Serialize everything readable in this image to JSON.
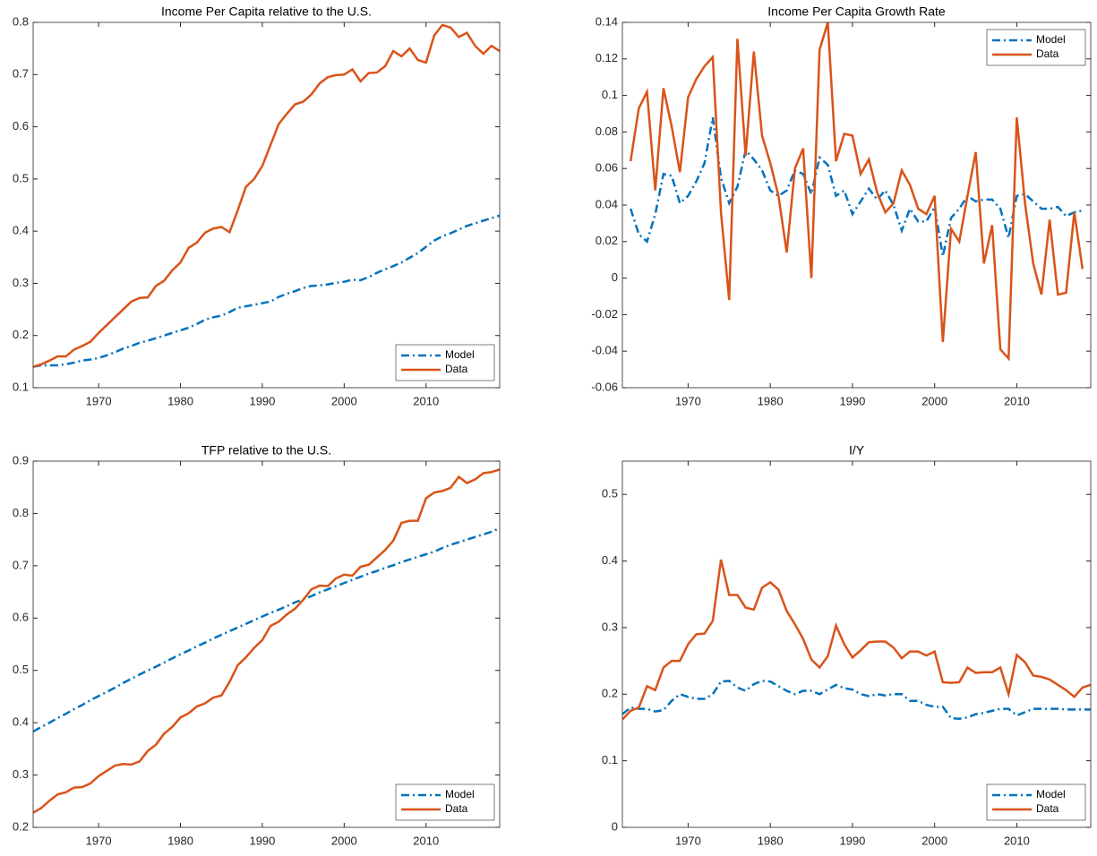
{
  "chart_data": [
    {
      "type": "line",
      "title": "Income Per Capita relative to the U.S.",
      "x": [
        1962,
        1963,
        1964,
        1965,
        1966,
        1967,
        1968,
        1969,
        1970,
        1971,
        1972,
        1973,
        1974,
        1975,
        1976,
        1977,
        1978,
        1979,
        1980,
        1981,
        1982,
        1983,
        1984,
        1985,
        1986,
        1987,
        1988,
        1989,
        1990,
        1991,
        1992,
        1993,
        1994,
        1995,
        1996,
        1997,
        1998,
        1999,
        2000,
        2001,
        2002,
        2003,
        2004,
        2005,
        2006,
        2007,
        2008,
        2009,
        2010,
        2011,
        2012,
        2013,
        2014,
        2015,
        2016,
        2017,
        2018,
        2019
      ],
      "series": [
        {
          "name": "Model",
          "color": "#0072BD",
          "style": "dashdot",
          "values": [
            0.14,
            0.143,
            0.143,
            0.143,
            0.145,
            0.148,
            0.152,
            0.154,
            0.157,
            0.162,
            0.168,
            0.175,
            0.18,
            0.186,
            0.19,
            0.195,
            0.2,
            0.205,
            0.21,
            0.215,
            0.222,
            0.23,
            0.235,
            0.238,
            0.245,
            0.253,
            0.256,
            0.259,
            0.262,
            0.265,
            0.274,
            0.28,
            0.285,
            0.291,
            0.295,
            0.296,
            0.298,
            0.301,
            0.303,
            0.307,
            0.306,
            0.312,
            0.32,
            0.327,
            0.333,
            0.34,
            0.349,
            0.358,
            0.37,
            0.382,
            0.39,
            0.396,
            0.403,
            0.41,
            0.415,
            0.42,
            0.425,
            0.43
          ]
        },
        {
          "name": "Data",
          "color": "#D95319",
          "style": "solid",
          "values": [
            0.14,
            0.145,
            0.152,
            0.16,
            0.16,
            0.173,
            0.18,
            0.188,
            0.205,
            0.22,
            0.235,
            0.25,
            0.265,
            0.272,
            0.273,
            0.295,
            0.305,
            0.325,
            0.34,
            0.368,
            0.378,
            0.397,
            0.405,
            0.408,
            0.398,
            0.44,
            0.485,
            0.5,
            0.525,
            0.565,
            0.605,
            0.625,
            0.643,
            0.648,
            0.662,
            0.683,
            0.695,
            0.699,
            0.7,
            0.71,
            0.687,
            0.703,
            0.704,
            0.716,
            0.745,
            0.735,
            0.75,
            0.728,
            0.723,
            0.775,
            0.795,
            0.79,
            0.772,
            0.78,
            0.755,
            0.74,
            0.755,
            0.745
          ]
        }
      ],
      "xlim": [
        1962,
        2019
      ],
      "xticks": [
        1970,
        1980,
        1990,
        2000,
        2010
      ],
      "ylim": [
        0.1,
        0.8
      ],
      "yticks": [
        0.1,
        0.2,
        0.3,
        0.4,
        0.5,
        0.6,
        0.7,
        0.8
      ],
      "legend": "lower right"
    },
    {
      "type": "line",
      "title": "Income Per Capita Growth Rate",
      "x": [
        1963,
        1964,
        1965,
        1966,
        1967,
        1968,
        1969,
        1970,
        1971,
        1972,
        1973,
        1974,
        1975,
        1976,
        1977,
        1978,
        1979,
        1980,
        1981,
        1982,
        1983,
        1984,
        1985,
        1986,
        1987,
        1988,
        1989,
        1990,
        1991,
        1992,
        1993,
        1994,
        1995,
        1996,
        1997,
        1998,
        1999,
        2000,
        2001,
        2002,
        2003,
        2004,
        2005,
        2006,
        2007,
        2008,
        2009,
        2010,
        2011,
        2012,
        2013,
        2014,
        2015,
        2016,
        2017,
        2018
      ],
      "series": [
        {
          "name": "Model",
          "color": "#0072BD",
          "style": "dashdot",
          "values": [
            0.038,
            0.024,
            0.02,
            0.035,
            0.057,
            0.056,
            0.041,
            0.045,
            0.053,
            0.063,
            0.088,
            0.055,
            0.041,
            0.05,
            0.07,
            0.065,
            0.059,
            0.048,
            0.045,
            0.048,
            0.059,
            0.057,
            0.046,
            0.066,
            0.062,
            0.045,
            0.048,
            0.035,
            0.042,
            0.049,
            0.043,
            0.048,
            0.04,
            0.026,
            0.038,
            0.031,
            0.031,
            0.039,
            0.012,
            0.033,
            0.038,
            0.045,
            0.042,
            0.043,
            0.043,
            0.038,
            0.022,
            0.045,
            0.046,
            0.042,
            0.038,
            0.038,
            0.039,
            0.034,
            0.036,
            0.037
          ]
        },
        {
          "name": "Data",
          "color": "#D95319",
          "style": "solid",
          "values": [
            0.064,
            0.093,
            0.102,
            0.048,
            0.104,
            0.083,
            0.058,
            0.099,
            0.109,
            0.116,
            0.121,
            0.036,
            -0.012,
            0.131,
            0.067,
            0.124,
            0.078,
            0.063,
            0.045,
            0.014,
            0.06,
            0.071,
            0,
            0.125,
            0.14,
            0.064,
            0.079,
            0.078,
            0.057,
            0.065,
            0.047,
            0.036,
            0.041,
            0.059,
            0.051,
            0.038,
            0.035,
            0.045,
            -0.035,
            0.027,
            0.02,
            0.045,
            0.069,
            0.008,
            0.029,
            -0.039,
            -0.044,
            0.088,
            0.041,
            0.008,
            -0.009,
            0.032,
            -0.009,
            -0.008,
            0.036,
            0.005
          ]
        }
      ],
      "xlim": [
        1962,
        2019
      ],
      "xticks": [
        1970,
        1980,
        1990,
        2000,
        2010
      ],
      "ylim": [
        -0.06,
        0.14
      ],
      "yticks": [
        -0.06,
        -0.04,
        -0.02,
        0,
        0.02,
        0.04,
        0.06,
        0.08,
        0.1,
        0.12,
        0.14
      ],
      "legend": "upper right"
    },
    {
      "type": "line",
      "title": "TFP relative to the U.S.",
      "x": [
        1962,
        1963,
        1964,
        1965,
        1966,
        1967,
        1968,
        1969,
        1970,
        1971,
        1972,
        1973,
        1974,
        1975,
        1976,
        1977,
        1978,
        1979,
        1980,
        1981,
        1982,
        1983,
        1984,
        1985,
        1986,
        1987,
        1988,
        1989,
        1990,
        1991,
        1992,
        1993,
        1994,
        1995,
        1996,
        1997,
        1998,
        1999,
        2000,
        2001,
        2002,
        2003,
        2004,
        2005,
        2006,
        2007,
        2008,
        2009,
        2010,
        2011,
        2012,
        2013,
        2014,
        2015,
        2016,
        2017,
        2018,
        2019
      ],
      "series": [
        {
          "name": "Model",
          "color": "#0072BD",
          "style": "dashdot",
          "values": [
            0.383,
            0.392,
            0.4,
            0.409,
            0.417,
            0.426,
            0.434,
            0.443,
            0.451,
            0.459,
            0.467,
            0.476,
            0.484,
            0.492,
            0.5,
            0.507,
            0.515,
            0.523,
            0.531,
            0.538,
            0.546,
            0.553,
            0.561,
            0.568,
            0.575,
            0.582,
            0.589,
            0.596,
            0.603,
            0.61,
            0.616,
            0.623,
            0.63,
            0.636,
            0.642,
            0.649,
            0.655,
            0.661,
            0.667,
            0.673,
            0.679,
            0.685,
            0.69,
            0.696,
            0.701,
            0.707,
            0.712,
            0.717,
            0.722,
            0.727,
            0.734,
            0.74,
            0.745,
            0.75,
            0.755,
            0.76,
            0.765,
            0.772
          ]
        },
        {
          "name": "Data",
          "color": "#D95319",
          "style": "solid",
          "values": [
            0.228,
            0.237,
            0.251,
            0.263,
            0.267,
            0.276,
            0.277,
            0.284,
            0.298,
            0.308,
            0.318,
            0.321,
            0.32,
            0.326,
            0.346,
            0.358,
            0.379,
            0.392,
            0.41,
            0.418,
            0.431,
            0.437,
            0.448,
            0.452,
            0.478,
            0.51,
            0.525,
            0.543,
            0.558,
            0.585,
            0.593,
            0.607,
            0.618,
            0.635,
            0.655,
            0.662,
            0.661,
            0.676,
            0.683,
            0.681,
            0.698,
            0.702,
            0.716,
            0.73,
            0.748,
            0.782,
            0.786,
            0.786,
            0.829,
            0.84,
            0.843,
            0.849,
            0.87,
            0.858,
            0.865,
            0.877,
            0.879,
            0.884
          ]
        }
      ],
      "xlim": [
        1962,
        2019
      ],
      "xticks": [
        1970,
        1980,
        1990,
        2000,
        2010
      ],
      "ylim": [
        0.2,
        0.9
      ],
      "yticks": [
        0.2,
        0.3,
        0.4,
        0.5,
        0.6,
        0.7,
        0.8,
        0.9
      ],
      "legend": "lower right"
    },
    {
      "type": "line",
      "title": "I/Y",
      "x": [
        1962,
        1963,
        1964,
        1965,
        1966,
        1967,
        1968,
        1969,
        1970,
        1971,
        1972,
        1973,
        1974,
        1975,
        1976,
        1977,
        1978,
        1979,
        1980,
        1981,
        1982,
        1983,
        1984,
        1985,
        1986,
        1987,
        1988,
        1989,
        1990,
        1991,
        1992,
        1993,
        1994,
        1995,
        1996,
        1997,
        1998,
        1999,
        2000,
        2001,
        2002,
        2003,
        2004,
        2005,
        2006,
        2007,
        2008,
        2009,
        2010,
        2011,
        2012,
        2013,
        2014,
        2015,
        2016,
        2017,
        2018,
        2019
      ],
      "series": [
        {
          "name": "Model",
          "color": "#0072BD",
          "style": "dashdot",
          "values": [
            0.17,
            0.18,
            0.178,
            0.178,
            0.174,
            0.176,
            0.19,
            0.2,
            0.196,
            0.193,
            0.193,
            0.2,
            0.219,
            0.22,
            0.21,
            0.205,
            0.215,
            0.22,
            0.219,
            0.212,
            0.205,
            0.2,
            0.205,
            0.205,
            0.2,
            0.207,
            0.214,
            0.209,
            0.207,
            0.2,
            0.197,
            0.2,
            0.198,
            0.2,
            0.2,
            0.19,
            0.19,
            0.184,
            0.181,
            0.181,
            0.164,
            0.163,
            0.165,
            0.17,
            0.172,
            0.175,
            0.178,
            0.178,
            0.168,
            0.173,
            0.178,
            0.178,
            0.178,
            0.178,
            0.177,
            0.177,
            0.177,
            0.177
          ]
        },
        {
          "name": "Data",
          "color": "#D95319",
          "style": "solid",
          "values": [
            0.162,
            0.175,
            0.18,
            0.212,
            0.206,
            0.24,
            0.25,
            0.25,
            0.275,
            0.29,
            0.291,
            0.31,
            0.402,
            0.349,
            0.349,
            0.33,
            0.327,
            0.36,
            0.368,
            0.357,
            0.325,
            0.305,
            0.283,
            0.252,
            0.24,
            0.257,
            0.303,
            0.275,
            0.255,
            0.266,
            0.278,
            0.279,
            0.279,
            0.27,
            0.254,
            0.264,
            0.264,
            0.258,
            0.264,
            0.218,
            0.217,
            0.218,
            0.24,
            0.232,
            0.233,
            0.233,
            0.24,
            0.2,
            0.259,
            0.248,
            0.228,
            0.226,
            0.222,
            0.214,
            0.206,
            0.196,
            0.21,
            0.214
          ]
        }
      ],
      "xlim": [
        1962,
        2019
      ],
      "xticks": [
        1970,
        1980,
        1990,
        2000,
        2010
      ],
      "ylim": [
        0,
        0.55
      ],
      "yticks": [
        0,
        0.1,
        0.2,
        0.3,
        0.4,
        0.5
      ],
      "legend": "lower right"
    }
  ]
}
